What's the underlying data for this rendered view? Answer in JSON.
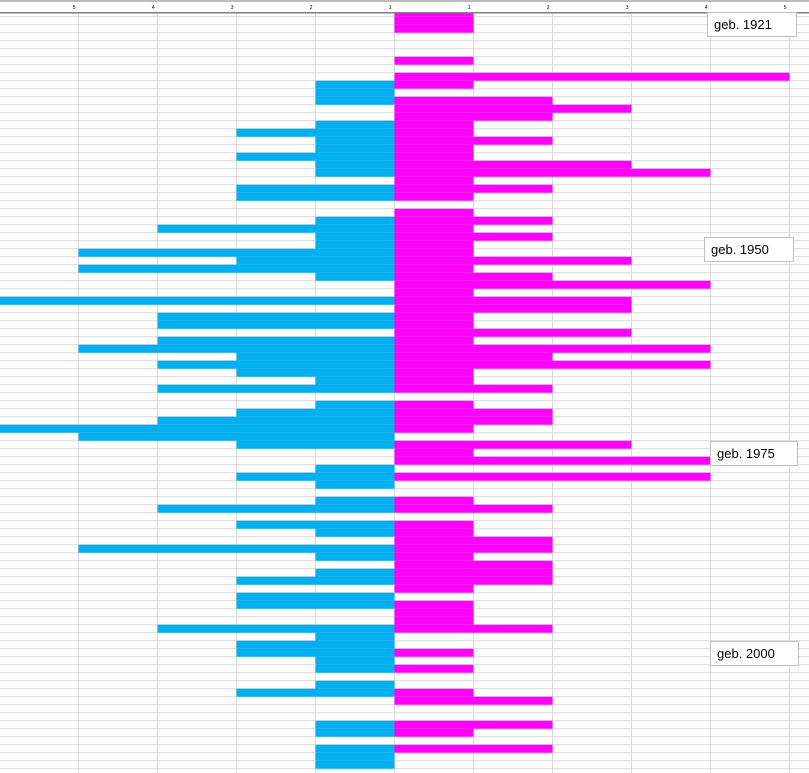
{
  "chart_data": {
    "type": "bar",
    "orientation": "horizontal-diverging",
    "title": "",
    "xlabel": "",
    "ylabel": "",
    "x_tick_labels": [
      "5",
      "4",
      "3",
      "2",
      "1",
      "1",
      "2",
      "3",
      "4",
      "5"
    ],
    "xlim": [
      -5,
      5
    ],
    "grid": true,
    "colors": {
      "left": "#00B0F0",
      "right": "#FF00FF",
      "grid": "#d9d9d9",
      "axis": "#808080"
    },
    "series": [
      {
        "name": "left",
        "side": "left",
        "values": [
          0,
          0,
          0,
          0,
          0,
          0,
          0,
          0,
          0,
          1,
          1,
          1,
          0,
          0,
          1,
          2,
          1,
          1,
          2,
          1,
          1,
          0,
          2,
          2,
          0,
          0,
          1,
          3,
          1,
          1,
          4,
          2,
          4,
          1,
          0,
          0,
          5,
          0,
          3,
          3,
          0,
          3,
          4,
          2,
          3,
          2,
          1,
          3,
          0,
          1,
          2,
          3,
          5,
          4,
          2,
          0,
          0,
          1,
          2,
          1,
          0,
          1,
          3,
          0,
          2,
          1,
          0,
          4,
          1,
          0,
          1,
          2,
          0,
          2,
          2,
          0,
          0,
          3,
          1,
          2,
          2,
          1,
          1,
          0,
          1,
          2,
          0,
          0,
          0,
          1,
          1,
          0,
          1,
          1,
          1
        ]
      },
      {
        "name": "right",
        "side": "right",
        "values": [
          1,
          1,
          1,
          0,
          0,
          0,
          1,
          0,
          5,
          1,
          0,
          2,
          3,
          2,
          1,
          1,
          2,
          1,
          1,
          3,
          4,
          1,
          2,
          1,
          0,
          1,
          2,
          1,
          2,
          1,
          1,
          3,
          1,
          2,
          4,
          1,
          3,
          3,
          1,
          1,
          3,
          1,
          4,
          2,
          4,
          1,
          1,
          2,
          0,
          1,
          2,
          2,
          1,
          0,
          3,
          1,
          4,
          0,
          4,
          0,
          0,
          1,
          2,
          0,
          1,
          1,
          2,
          2,
          1,
          2,
          2,
          2,
          1,
          0,
          1,
          1,
          1,
          2,
          0,
          0,
          1,
          0,
          1,
          0,
          0,
          1,
          2,
          0,
          0,
          2,
          1,
          0,
          2,
          0,
          0
        ]
      }
    ],
    "annotations": [
      {
        "text": "geb. 1921",
        "row": 1
      },
      {
        "text": "geb. 1950",
        "row": 29
      },
      {
        "text": "geb. 1975",
        "row": 54
      },
      {
        "text": "geb. 2000",
        "row": 79
      }
    ]
  }
}
